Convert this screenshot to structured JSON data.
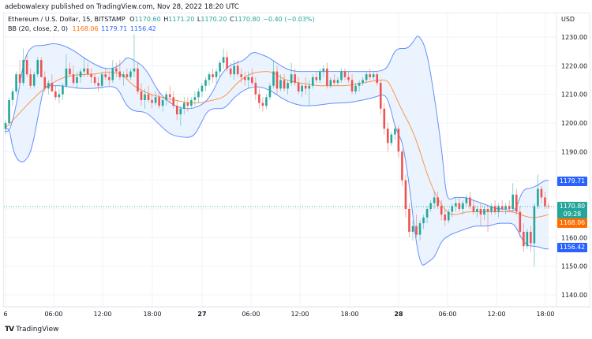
{
  "header": {
    "publish_text": "adebowalexy published on TradingView.com, Nov 28, 2022 18:20 UTC"
  },
  "legend": {
    "symbol": "Ethereum / U.S. Dollar, 15, BITSTAMP",
    "open_key": "O",
    "open": "1170.60",
    "high_key": "H",
    "high": "1171.20",
    "low_key": "L",
    "low": "1170.20",
    "close_key": "C",
    "close": "1170.80",
    "change": "−0.40 (−0.03%)",
    "indicator": "BB (20, close, 2, 0)",
    "bb_basis": "1168.06",
    "bb_upper": "1179.71",
    "bb_lower": "1156.42"
  },
  "price_axis": {
    "currency": "USD",
    "ticks": [
      "1230.00",
      "1220.00",
      "1210.00",
      "1200.00",
      "1190.00",
      "1160.00",
      "1150.00",
      "1140.00"
    ]
  },
  "price_tags": {
    "bb_upper": "1179.71",
    "last_price": "1170.80",
    "countdown": "09:28",
    "bb_basis": "1168.06",
    "bb_lower": "1156.42"
  },
  "time_axis": {
    "ticks": [
      "6",
      "06:00",
      "12:00",
      "18:00",
      "27",
      "06:00",
      "12:00",
      "18:00",
      "28",
      "06:00",
      "12:00",
      "18:00"
    ]
  },
  "footer": {
    "logo_mark": "TV",
    "logo_text": "TradingView"
  },
  "colors": {
    "up": "#26a69a",
    "down": "#ef5350",
    "bb_band": "#2962ff",
    "bb_basis": "#ff6d00",
    "bb_fill": "#e3f0fd",
    "grid": "#f0f3fa",
    "tag_blue": "#2962ff",
    "tag_green": "#26a69a",
    "tag_orange": "#ff6d00"
  },
  "chart_data": {
    "type": "candlestick",
    "title": "Ethereum / U.S. Dollar, 15, BITSTAMP",
    "xlabel": "",
    "ylabel": "USD",
    "ylim": [
      1135,
      1235
    ],
    "grid": true,
    "x_ticks": [
      "6",
      "06:00",
      "12:00",
      "18:00",
      "27",
      "06:00",
      "12:00",
      "18:00",
      "28",
      "06:00",
      "12:00",
      "18:00"
    ],
    "y_ticks": [
      1140,
      1150,
      1160,
      1170,
      1180,
      1190,
      1200,
      1210,
      1220,
      1230
    ],
    "last": {
      "open": 1170.6,
      "high": 1171.2,
      "low": 1170.2,
      "close": 1170.8,
      "change": -0.4,
      "change_pct": -0.03
    },
    "bollinger": {
      "length": 20,
      "source": "close",
      "mult": 2,
      "offset": 0,
      "basis": 1168.06,
      "upper": 1179.71,
      "lower": 1156.42
    },
    "series": [
      {
        "name": "upper_band",
        "x": [
          6,
          12,
          20,
          30,
          40,
          55,
          70,
          90,
          110,
          130,
          145,
          155,
          160,
          170,
          185,
          200,
          215,
          230,
          245,
          260,
          270,
          280,
          290,
          300,
          310,
          320,
          330,
          340,
          355,
          370,
          390,
          410,
          430,
          450,
          465,
          480,
          490,
          495,
          500,
          505,
          510,
          515,
          520,
          525,
          530,
          540,
          550,
          560,
          565,
          570,
          575,
          580,
          590,
          600,
          610,
          620,
          630,
          640,
          650,
          655,
          660,
          665,
          670,
          680,
          690,
          695
        ],
        "values": [
          1197,
          1197,
          1205,
          1222,
          1227,
          1227,
          1228,
          1226,
          1222,
          1219,
          1219,
          1221,
          1223,
          1222,
          1219,
          1211,
          1207,
          1205,
          1205,
          1207,
          1211,
          1217,
          1220,
          1221,
          1222,
          1225,
          1224,
          1223,
          1220,
          1218,
          1218,
          1218,
          1218,
          1218,
          1218,
          1218,
          1219,
          1222,
          1225,
          1226,
          1226,
          1226,
          1227,
          1229,
          1231,
          1226,
          1210,
          1190,
          1175,
          1173,
          1174,
          1174,
          1174,
          1173,
          1172,
          1171,
          1170,
          1170,
          1169,
          1171,
          1175,
          1177,
          1177,
          1178,
          1180,
          1180
        ]
      },
      {
        "name": "lower_band",
        "x": [
          6,
          12,
          16,
          22,
          30,
          40,
          50,
          55,
          60,
          70,
          80,
          100,
          120,
          140,
          150,
          160,
          170,
          185,
          200,
          215,
          230,
          245,
          255,
          262,
          270,
          275,
          285,
          300,
          320,
          340,
          360,
          380,
          400,
          420,
          440,
          460,
          475,
          485,
          490,
          495,
          500,
          505,
          510,
          515,
          520,
          525,
          530,
          535,
          540,
          545,
          550,
          555,
          560,
          570,
          580,
          590,
          600,
          610,
          620,
          630,
          640,
          650,
          655,
          660,
          665,
          670,
          680,
          690,
          695
        ],
        "values": [
          1198,
          1198,
          1191,
          1187,
          1186,
          1190,
          1205,
          1212,
          1213,
          1213,
          1213,
          1212,
          1212,
          1213,
          1212,
          1206,
          1204,
          1204,
          1200,
          1196,
          1195,
          1195,
          1200,
          1204,
          1205,
          1205,
          1205,
          1210,
          1213,
          1212,
          1208,
          1206,
          1206,
          1207,
          1207,
          1208,
          1209,
          1210,
          1209,
          1205,
          1199,
          1196,
          1193,
          1185,
          1175,
          1163,
          1154,
          1150,
          1151,
          1152,
          1153,
          1156,
          1159,
          1161,
          1162,
          1163,
          1164,
          1164,
          1164,
          1165,
          1165,
          1165,
          1163,
          1160,
          1158,
          1157,
          1157,
          1156,
          1156
        ]
      },
      {
        "name": "basis",
        "x": [
          6,
          20,
          40,
          60,
          80,
          100,
          120,
          140,
          155,
          165,
          175,
          190,
          205,
          220,
          240,
          255,
          270,
          285,
          300,
          315,
          330,
          345,
          360,
          380,
          400,
          420,
          440,
          460,
          480,
          490,
          495,
          500,
          510,
          520,
          530,
          540,
          550,
          560,
          570,
          580,
          590,
          600,
          620,
          640,
          650,
          660,
          670,
          680,
          695
        ],
        "values": [
          1198,
          1202,
          1208,
          1213,
          1216,
          1217,
          1217,
          1218,
          1217,
          1214,
          1212,
          1210,
          1209,
          1208,
          1207,
          1207,
          1208,
          1209,
          1214,
          1217,
          1218,
          1218,
          1215,
          1214,
          1213,
          1213,
          1213,
          1214,
          1215,
          1215,
          1213,
          1210,
          1204,
          1199,
          1192,
          1183,
          1176,
          1171,
          1168,
          1168,
          1169,
          1169,
          1169,
          1169,
          1169,
          1168,
          1167,
          1167,
          1168
        ]
      }
    ],
    "candles_note": "Approximate 15-minute OHLC bars across Nov 26 06:00 to Nov 28 18:20, rendered from the candles array"
  },
  "candles": [
    [
      1198,
      1201,
      1196,
      1200
    ],
    [
      1200,
      1209,
      1199,
      1208
    ],
    [
      1208,
      1212,
      1206,
      1211
    ],
    [
      1211,
      1218,
      1210,
      1217
    ],
    [
      1217,
      1222,
      1214,
      1214
    ],
    [
      1214,
      1226,
      1213,
      1222
    ],
    [
      1222,
      1224,
      1216,
      1217
    ],
    [
      1217,
      1219,
      1212,
      1213
    ],
    [
      1213,
      1218,
      1212,
      1217
    ],
    [
      1217,
      1223,
      1216,
      1222
    ],
    [
      1222,
      1223,
      1216,
      1216
    ],
    [
      1216,
      1218,
      1211,
      1212
    ],
    [
      1212,
      1215,
      1210,
      1214
    ],
    [
      1214,
      1217,
      1211,
      1211
    ],
    [
      1211,
      1213,
      1208,
      1209
    ],
    [
      1209,
      1212,
      1207,
      1210
    ],
    [
      1210,
      1214,
      1208,
      1213
    ],
    [
      1213,
      1224,
      1212,
      1219
    ],
    [
      1219,
      1221,
      1216,
      1217
    ],
    [
      1217,
      1220,
      1213,
      1214
    ],
    [
      1214,
      1218,
      1212,
      1216
    ],
    [
      1216,
      1219,
      1214,
      1218
    ],
    [
      1218,
      1223,
      1216,
      1219
    ],
    [
      1219,
      1221,
      1216,
      1217
    ],
    [
      1217,
      1219,
      1214,
      1216
    ],
    [
      1216,
      1217,
      1213,
      1214
    ],
    [
      1214,
      1216,
      1211,
      1213
    ],
    [
      1213,
      1218,
      1212,
      1217
    ],
    [
      1217,
      1219,
      1215,
      1216
    ],
    [
      1216,
      1218,
      1213,
      1215
    ],
    [
      1215,
      1222,
      1214,
      1219
    ],
    [
      1219,
      1221,
      1216,
      1218
    ],
    [
      1218,
      1222,
      1215,
      1216
    ],
    [
      1216,
      1218,
      1213,
      1217
    ],
    [
      1217,
      1219,
      1215,
      1216
    ],
    [
      1216,
      1219,
      1215,
      1218
    ],
    [
      1218,
      1231,
      1216,
      1219
    ],
    [
      1219,
      1221,
      1210,
      1211
    ],
    [
      1211,
      1214,
      1206,
      1208
    ],
    [
      1208,
      1212,
      1205,
      1210
    ],
    [
      1210,
      1213,
      1207,
      1208
    ],
    [
      1208,
      1210,
      1205,
      1207
    ],
    [
      1207,
      1211,
      1206,
      1209
    ],
    [
      1209,
      1211,
      1205,
      1206
    ],
    [
      1206,
      1209,
      1204,
      1208
    ],
    [
      1208,
      1211,
      1206,
      1210
    ],
    [
      1210,
      1213,
      1207,
      1209
    ],
    [
      1209,
      1211,
      1205,
      1206
    ],
    [
      1206,
      1208,
      1201,
      1203
    ],
    [
      1203,
      1206,
      1199,
      1205
    ],
    [
      1205,
      1209,
      1203,
      1207
    ],
    [
      1207,
      1209,
      1204,
      1206
    ],
    [
      1206,
      1209,
      1205,
      1208
    ],
    [
      1208,
      1211,
      1206,
      1209
    ],
    [
      1209,
      1212,
      1207,
      1211
    ],
    [
      1211,
      1214,
      1209,
      1213
    ],
    [
      1213,
      1216,
      1211,
      1215
    ],
    [
      1215,
      1218,
      1213,
      1217
    ],
    [
      1217,
      1219,
      1214,
      1216
    ],
    [
      1216,
      1219,
      1214,
      1218
    ],
    [
      1218,
      1222,
      1216,
      1221
    ],
    [
      1221,
      1226,
      1219,
      1223
    ],
    [
      1223,
      1225,
      1218,
      1219
    ],
    [
      1219,
      1221,
      1216,
      1217
    ],
    [
      1217,
      1222,
      1215,
      1220
    ],
    [
      1220,
      1222,
      1216,
      1217
    ],
    [
      1217,
      1219,
      1214,
      1216
    ],
    [
      1216,
      1218,
      1213,
      1215
    ],
    [
      1215,
      1218,
      1212,
      1216
    ],
    [
      1216,
      1219,
      1213,
      1214
    ],
    [
      1214,
      1216,
      1208,
      1210
    ],
    [
      1210,
      1212,
      1205,
      1207
    ],
    [
      1207,
      1209,
      1204,
      1206
    ],
    [
      1206,
      1210,
      1205,
      1209
    ],
    [
      1209,
      1214,
      1208,
      1213
    ],
    [
      1213,
      1222,
      1212,
      1218
    ],
    [
      1218,
      1220,
      1210,
      1212
    ],
    [
      1212,
      1217,
      1211,
      1215
    ],
    [
      1215,
      1217,
      1211,
      1212
    ],
    [
      1212,
      1215,
      1210,
      1214
    ],
    [
      1214,
      1221,
      1213,
      1217
    ],
    [
      1217,
      1219,
      1213,
      1214
    ],
    [
      1214,
      1216,
      1210,
      1211
    ],
    [
      1211,
      1214,
      1209,
      1213
    ],
    [
      1213,
      1216,
      1210,
      1212
    ],
    [
      1212,
      1215,
      1206,
      1213
    ],
    [
      1213,
      1217,
      1212,
      1216
    ],
    [
      1216,
      1218,
      1214,
      1215
    ],
    [
      1215,
      1219,
      1214,
      1218
    ],
    [
      1218,
      1220,
      1216,
      1219
    ],
    [
      1219,
      1221,
      1212,
      1213
    ],
    [
      1213,
      1216,
      1212,
      1215
    ],
    [
      1215,
      1217,
      1213,
      1214
    ],
    [
      1214,
      1216,
      1213,
      1215
    ],
    [
      1215,
      1219,
      1214,
      1218
    ],
    [
      1218,
      1219,
      1215,
      1216
    ],
    [
      1216,
      1218,
      1214,
      1215
    ],
    [
      1215,
      1217,
      1210,
      1211
    ],
    [
      1211,
      1214,
      1210,
      1213
    ],
    [
      1213,
      1215,
      1211,
      1214
    ],
    [
      1214,
      1216,
      1213,
      1215
    ],
    [
      1215,
      1218,
      1214,
      1217
    ],
    [
      1217,
      1219,
      1215,
      1216
    ],
    [
      1216,
      1218,
      1215,
      1217
    ],
    [
      1217,
      1218,
      1213,
      1214
    ],
    [
      1214,
      1215,
      1203,
      1205
    ],
    [
      1205,
      1207,
      1196,
      1198
    ],
    [
      1198,
      1200,
      1190,
      1193
    ],
    [
      1193,
      1197,
      1192,
      1196
    ],
    [
      1196,
      1199,
      1194,
      1198
    ],
    [
      1198,
      1199,
      1188,
      1190
    ],
    [
      1190,
      1191,
      1178,
      1180
    ],
    [
      1180,
      1182,
      1167,
      1170
    ],
    [
      1170,
      1172,
      1160,
      1162
    ],
    [
      1162,
      1166,
      1159,
      1164
    ],
    [
      1164,
      1168,
      1160,
      1161
    ],
    [
      1161,
      1166,
      1159,
      1165
    ],
    [
      1165,
      1168,
      1163,
      1167
    ],
    [
      1167,
      1171,
      1165,
      1170
    ],
    [
      1170,
      1173,
      1169,
      1172
    ],
    [
      1172,
      1176,
      1170,
      1174
    ],
    [
      1174,
      1176,
      1170,
      1171
    ],
    [
      1171,
      1173,
      1166,
      1168
    ],
    [
      1168,
      1170,
      1164,
      1166
    ],
    [
      1166,
      1170,
      1165,
      1169
    ],
    [
      1169,
      1172,
      1167,
      1171
    ],
    [
      1171,
      1174,
      1169,
      1172
    ],
    [
      1172,
      1174,
      1169,
      1170
    ],
    [
      1170,
      1173,
      1168,
      1172
    ],
    [
      1172,
      1175,
      1171,
      1174
    ],
    [
      1174,
      1176,
      1170,
      1171
    ],
    [
      1171,
      1173,
      1168,
      1169
    ],
    [
      1169,
      1171,
      1167,
      1170
    ],
    [
      1170,
      1172,
      1164,
      1168
    ],
    [
      1168,
      1171,
      1166,
      1170
    ],
    [
      1170,
      1171,
      1162,
      1169
    ],
    [
      1169,
      1172,
      1168,
      1171
    ],
    [
      1171,
      1173,
      1168,
      1169
    ],
    [
      1169,
      1172,
      1167,
      1171
    ],
    [
      1171,
      1173,
      1169,
      1170
    ],
    [
      1170,
      1172,
      1168,
      1171
    ],
    [
      1171,
      1173,
      1169,
      1170
    ],
    [
      1170,
      1179,
      1169,
      1175
    ],
    [
      1175,
      1177,
      1168,
      1169
    ],
    [
      1169,
      1171,
      1160,
      1162
    ],
    [
      1162,
      1165,
      1155,
      1157
    ],
    [
      1157,
      1163,
      1156,
      1162
    ],
    [
      1162,
      1164,
      1155,
      1158
    ],
    [
      1158,
      1172,
      1150,
      1171
    ],
    [
      1171,
      1182,
      1170,
      1177
    ],
    [
      1177,
      1178,
      1172,
      1174
    ],
    [
      1174,
      1176,
      1170,
      1171
    ],
    [
      1171,
      1172,
      1170,
      1170.8
    ]
  ]
}
